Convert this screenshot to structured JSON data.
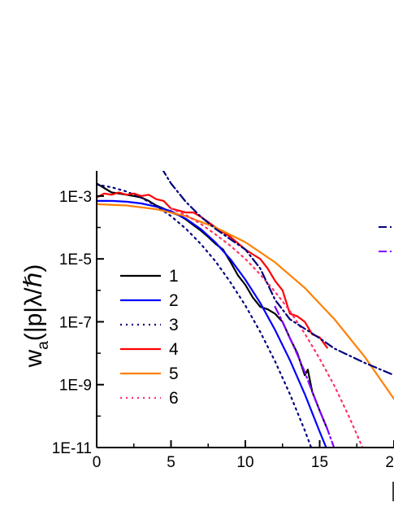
{
  "chart_data": {
    "type": "line",
    "ylabel": "w",
    "ylabel_sub": "a",
    "ylabel_rest": "(|p|λ/ℏ)",
    "xlabel": "",
    "xlim": [
      0,
      20
    ],
    "ylim_log10": [
      -11,
      -2.2
    ],
    "x_scale": "linear",
    "y_scale": "log",
    "x_ticks": [
      0,
      5,
      10,
      15,
      20
    ],
    "x_tick_labels": [
      "0",
      "5",
      "10",
      "15",
      "20"
    ],
    "y_ticks_log10": [
      -3,
      -5,
      -7,
      -9,
      -11
    ],
    "y_tick_labels": [
      "1E-3",
      "1E-5",
      "1E-7",
      "1E-9",
      "1E-11"
    ],
    "legend_position": "left-center",
    "series": [
      {
        "name": "1",
        "color": "#000000",
        "style": "solid",
        "points": [
          [
            0,
            0.0025
          ],
          [
            0.5,
            0.0018
          ],
          [
            1,
            0.0013
          ],
          [
            1.5,
            0.0012
          ],
          [
            2,
            0.0011
          ],
          [
            2.5,
            0.001
          ],
          [
            3,
            0.0009
          ],
          [
            3.5,
            0.0007
          ],
          [
            4,
            0.0005
          ],
          [
            4.5,
            0.0004
          ],
          [
            5,
            0.0003
          ],
          [
            5.5,
            0.00025
          ],
          [
            6,
            0.00018
          ],
          [
            6.5,
            0.00012
          ],
          [
            7,
            8e-05
          ],
          [
            7.5,
            5e-05
          ],
          [
            8,
            3e-05
          ],
          [
            8.5,
            2e-05
          ],
          [
            9,
            8e-06
          ],
          [
            9.5,
            3e-06
          ],
          [
            10,
            1.5e-06
          ],
          [
            10.5,
            6e-07
          ],
          [
            11,
            3e-07
          ],
          [
            11.5,
            2.5e-07
          ],
          [
            12,
            1.8e-07
          ],
          [
            12.5,
            1e-07
          ],
          [
            13,
            3e-08
          ],
          [
            13.5,
            1e-08
          ],
          [
            14,
            2e-09
          ],
          [
            14.2,
            3e-09
          ],
          [
            14.5,
            6e-10
          ],
          [
            15,
            1.5e-10
          ],
          [
            15.5,
            4e-11
          ]
        ]
      },
      {
        "name": "2",
        "color": "#0000ff",
        "style": "solid",
        "points": [
          [
            0,
            0.0007
          ],
          [
            1,
            0.0007
          ],
          [
            2,
            0.00066
          ],
          [
            3,
            0.00058
          ],
          [
            4,
            0.00046
          ],
          [
            5,
            0.00033
          ],
          [
            6,
            0.00019
          ],
          [
            7,
            8.9e-05
          ],
          [
            8,
            3.3e-05
          ],
          [
            9,
            9.7e-06
          ],
          [
            10,
            2.2e-06
          ],
          [
            11,
            4e-07
          ],
          [
            12,
            5.5e-08
          ],
          [
            13,
            6e-09
          ],
          [
            14,
            5e-10
          ],
          [
            15,
            3.2e-11
          ],
          [
            16.3,
            1e-12
          ]
        ]
      },
      {
        "name": "3",
        "color": "#000080",
        "style": "dotted",
        "points": [
          [
            0,
            0.0023
          ],
          [
            1,
            0.0019
          ],
          [
            2,
            0.0014
          ],
          [
            3,
            0.00088
          ],
          [
            4,
            0.00049
          ],
          [
            5,
            0.00023
          ],
          [
            6,
            9.1e-05
          ],
          [
            7,
            3e-05
          ],
          [
            8,
            8.3e-06
          ],
          [
            9,
            1.8e-06
          ],
          [
            10,
            3.3e-07
          ],
          [
            11,
            4.8e-08
          ],
          [
            12,
            5.5e-09
          ],
          [
            13,
            5e-10
          ],
          [
            14,
            3.5e-11
          ],
          [
            15,
            1.9e-12
          ],
          [
            16,
            1e-13
          ]
        ]
      },
      {
        "name": "4",
        "color": "#ff0000",
        "style": "solid",
        "points": [
          [
            0,
            0.0009
          ],
          [
            0.5,
            0.0012
          ],
          [
            1,
            0.0011
          ],
          [
            1.5,
            0.0013
          ],
          [
            2,
            0.0011
          ],
          [
            2.5,
            0.0012
          ],
          [
            3,
            0.001
          ],
          [
            3.5,
            0.0011
          ],
          [
            4,
            0.0008
          ],
          [
            4.5,
            0.0007
          ],
          [
            5,
            0.0004
          ],
          [
            6,
            0.0003
          ],
          [
            6.5,
            0.0003
          ],
          [
            7,
            0.00022
          ],
          [
            8,
            0.0001
          ],
          [
            9,
            5e-05
          ],
          [
            10,
            2e-05
          ],
          [
            10.5,
            1.4e-05
          ],
          [
            11,
            1e-05
          ],
          [
            11.5,
            5e-06
          ],
          [
            12,
            2e-06
          ],
          [
            12.5,
            1e-06
          ],
          [
            13,
            1.8e-07
          ],
          [
            13.5,
            1.5e-07
          ],
          [
            14,
            1e-07
          ],
          [
            14.5,
            4e-08
          ],
          [
            15,
            3.2e-08
          ],
          [
            15.5,
            1.5e-08
          ]
        ]
      },
      {
        "name": "5",
        "color": "#ff8000",
        "style": "solid",
        "points": [
          [
            0,
            0.00055
          ],
          [
            2,
            0.0005
          ],
          [
            4,
            0.00038
          ],
          [
            6,
            0.00023
          ],
          [
            8,
            0.0001
          ],
          [
            10,
            3.4e-05
          ],
          [
            12,
            7.8e-06
          ],
          [
            14,
            1.2e-06
          ],
          [
            16,
            1.2e-07
          ],
          [
            18,
            8e-09
          ],
          [
            20,
            3.5e-10
          ]
        ]
      },
      {
        "name": "6",
        "color": "#ff3366",
        "style": "dotted",
        "points": [
          [
            5,
            0.0004
          ],
          [
            6,
            0.00025
          ],
          [
            7,
            0.00013
          ],
          [
            8,
            6e-05
          ],
          [
            9,
            2.6e-05
          ],
          [
            10,
            1e-05
          ],
          [
            11,
            3.2e-06
          ],
          [
            12,
            9e-07
          ],
          [
            13,
            2.2e-07
          ],
          [
            14,
            4.2e-08
          ],
          [
            15,
            6.7e-09
          ],
          [
            16,
            9e-10
          ],
          [
            17,
            9e-11
          ],
          [
            18,
            7.5e-12
          ]
        ]
      },
      {
        "name": "",
        "color": "#000080",
        "style": "dashdot",
        "points": [
          [
            3,
            0.2
          ],
          [
            4,
            0.015
          ],
          [
            5,
            0.0025
          ],
          [
            6,
            0.00065
          ],
          [
            7,
            0.00022
          ],
          [
            8,
            9e-05
          ],
          [
            9,
            4.2e-05
          ],
          [
            10,
            2e-05
          ],
          [
            11,
            5e-06
          ],
          [
            12,
            5e-07
          ],
          [
            13,
            1.2e-07
          ],
          [
            14,
            6e-08
          ],
          [
            15,
            3e-08
          ],
          [
            16,
            1.4e-08
          ],
          [
            18,
            5e-09
          ],
          [
            20,
            2e-09
          ]
        ]
      },
      {
        "name": "",
        "color": "#8000ff",
        "style": "dashdot",
        "points": [
          [
            12,
            3e-07
          ],
          [
            12.5,
            1e-07
          ],
          [
            13,
            3e-08
          ],
          [
            13.5,
            9e-09
          ],
          [
            14,
            2.5e-09
          ],
          [
            14.5,
            6e-10
          ],
          [
            15,
            1.5e-10
          ],
          [
            15.5,
            4e-11
          ],
          [
            16,
            9e-12
          ],
          [
            16.5,
            2.2e-12
          ],
          [
            17,
            5e-13
          ]
        ]
      }
    ]
  }
}
